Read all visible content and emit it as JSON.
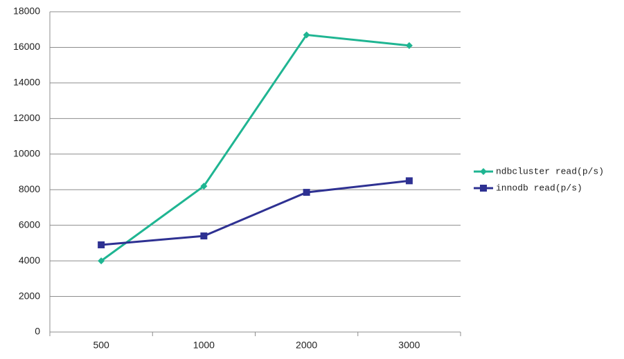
{
  "chart_data": {
    "type": "line",
    "categories": [
      "500",
      "1000",
      "2000",
      "3000"
    ],
    "series": [
      {
        "name": "ndbcluster read(p/s)",
        "color": "#1fb592",
        "marker": "diamond",
        "values": [
          4000,
          8200,
          16700,
          16100
        ]
      },
      {
        "name": "innodb read(p/s)",
        "color": "#2e3192",
        "marker": "square",
        "values": [
          4900,
          5400,
          7850,
          8500
        ]
      }
    ],
    "ylim": [
      0,
      18000
    ],
    "yticks": [
      0,
      2000,
      4000,
      6000,
      8000,
      10000,
      12000,
      14000,
      16000,
      18000
    ],
    "grid": true,
    "legend": "right"
  }
}
